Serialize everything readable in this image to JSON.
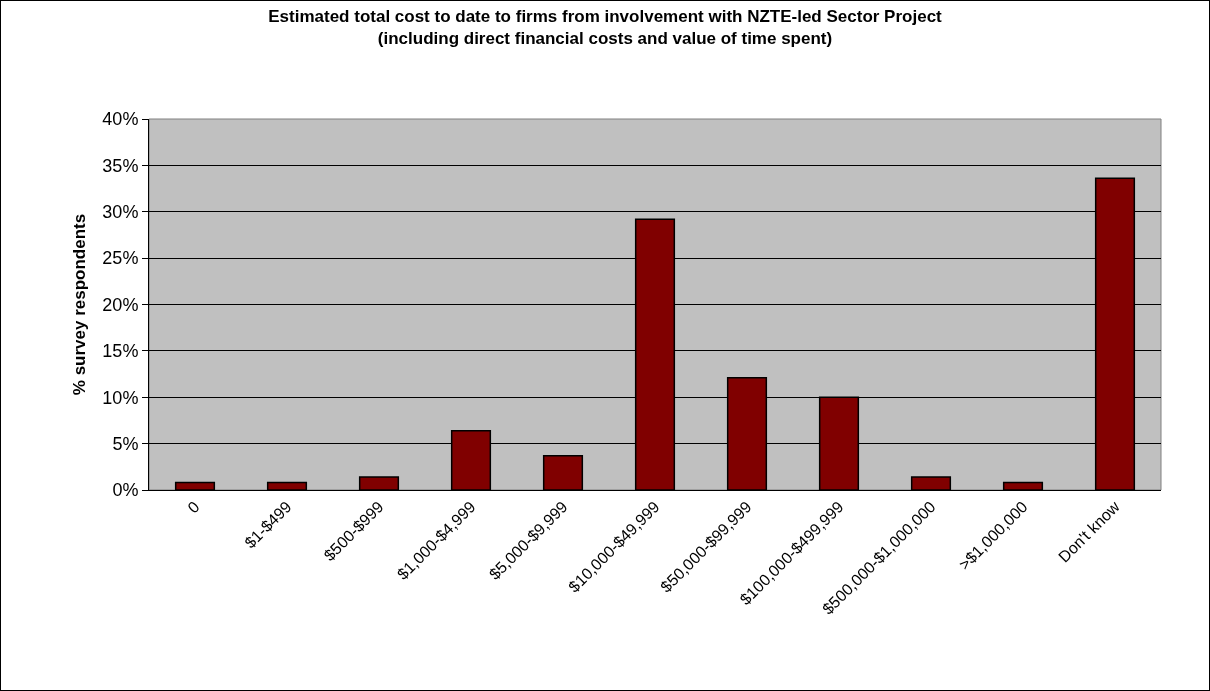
{
  "chart_data": {
    "type": "bar",
    "title": "Estimated total cost to date to firms from involvement with NZTE-led Sector Project (including direct financial costs and value of time spent)",
    "ylabel": "% survey respondents",
    "categories": [
      "0",
      "$1-$499",
      "$500-$999",
      "$1,000-$4,999",
      "$5,000-$9,999",
      "$10,000-$49,999",
      "$50,000-$99,999",
      "$100,000-$499,999",
      "$500,000-$1,000,000",
      ">$1,000,000",
      "Don't know"
    ],
    "values": [
      0.8,
      0.8,
      1.4,
      6.4,
      3.7,
      29.2,
      12.1,
      10.0,
      1.4,
      0.8,
      33.6
    ],
    "color": "#800000",
    "ylim": [
      0,
      40
    ],
    "yticks": [
      {
        "value": 0,
        "label": "0%"
      },
      {
        "value": 5,
        "label": "5%"
      },
      {
        "value": 10,
        "label": "10%"
      },
      {
        "value": 15,
        "label": "15%"
      },
      {
        "value": 20,
        "label": "20%"
      },
      {
        "value": 25,
        "label": "25%"
      },
      {
        "value": 30,
        "label": "30%"
      },
      {
        "value": 35,
        "label": "35%"
      },
      {
        "value": 40,
        "label": "40%"
      }
    ],
    "grid": "y"
  }
}
